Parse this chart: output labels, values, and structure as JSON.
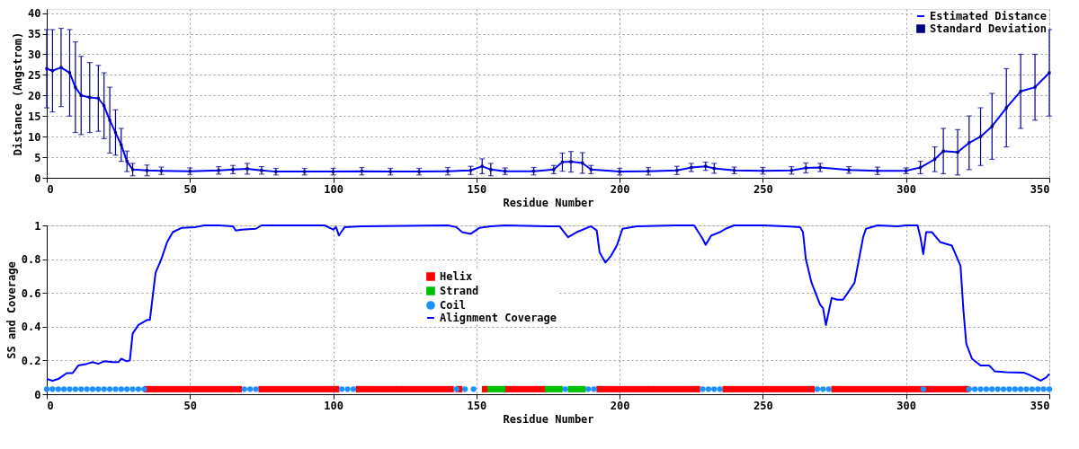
{
  "chart_data": [
    {
      "type": "line",
      "xlabel": "Residue Number",
      "ylabel": "Distance (Angstrom)",
      "xlim": [
        0,
        350
      ],
      "ylim": [
        0,
        41
      ],
      "xticks": [
        0,
        50,
        100,
        150,
        200,
        250,
        300,
        350
      ],
      "yticks": [
        0,
        5,
        10,
        15,
        20,
        25,
        30,
        35,
        40
      ],
      "grid": true,
      "legend": "top right",
      "x": [
        0,
        2,
        5,
        8,
        10,
        12,
        15,
        18,
        20,
        22,
        24,
        26,
        28,
        30,
        35,
        40,
        50,
        60,
        65,
        70,
        75,
        80,
        90,
        100,
        110,
        120,
        130,
        140,
        148,
        152,
        155,
        160,
        170,
        177,
        180,
        183,
        187,
        190,
        200,
        210,
        220,
        225,
        230,
        233,
        240,
        250,
        260,
        265,
        270,
        280,
        290,
        300,
        305,
        310,
        313,
        318,
        322,
        326,
        330,
        335,
        340,
        345,
        350
      ],
      "series": [
        {
          "name": "Estimated Distance",
          "color": "#0000ff",
          "values": [
            26.5,
            26,
            26.8,
            25.5,
            22,
            20,
            19.5,
            19.3,
            17.5,
            14,
            11,
            8,
            4,
            2,
            1.8,
            1.7,
            1.6,
            1.8,
            2.0,
            2.2,
            1.8,
            1.5,
            1.5,
            1.5,
            1.6,
            1.5,
            1.5,
            1.6,
            1.8,
            2.8,
            2.0,
            1.6,
            1.6,
            2.0,
            3.8,
            3.9,
            3.6,
            2.0,
            1.5,
            1.6,
            1.8,
            2.5,
            2.8,
            2.3,
            1.8,
            1.7,
            1.8,
            2.4,
            2.5,
            1.9,
            1.7,
            1.7,
            2.5,
            4.5,
            6.5,
            6.2,
            8.5,
            10,
            12.5,
            17,
            21,
            22,
            25.5
          ]
        },
        {
          "name": "Standard Deviation",
          "type": "scatter",
          "marker": "square",
          "color": "#00008b",
          "values": [
            26.5,
            26,
            26.8,
            25.5,
            22,
            20,
            19.5,
            19.3,
            17.5,
            14,
            11,
            8,
            4,
            2,
            1.8,
            1.7,
            1.6,
            1.8,
            2.0,
            2.2,
            1.8,
            1.5,
            1.5,
            1.5,
            1.6,
            1.5,
            1.5,
            1.6,
            1.8,
            2.8,
            2.0,
            1.6,
            1.6,
            2.0,
            3.8,
            3.9,
            3.6,
            2.0,
            1.5,
            1.6,
            1.8,
            2.5,
            2.8,
            2.3,
            1.8,
            1.7,
            1.8,
            2.4,
            2.5,
            1.9,
            1.7,
            1.7,
            2.5,
            4.5,
            6.5,
            6.2,
            8.5,
            10,
            12.5,
            17,
            21,
            22,
            25.5
          ],
          "errors": [
            9.5,
            10,
            9.5,
            10.5,
            11,
            9.5,
            8.5,
            8,
            8,
            8,
            5.5,
            4,
            2.5,
            1.5,
            1.3,
            0.9,
            0.8,
            0.9,
            1.0,
            1.3,
            0.9,
            0.8,
            0.8,
            0.8,
            0.9,
            0.8,
            0.8,
            0.9,
            1.0,
            1.8,
            1.5,
            0.8,
            0.9,
            1.0,
            2.2,
            2.5,
            2.5,
            1.0,
            0.8,
            0.9,
            1.0,
            1.0,
            1.0,
            1.2,
            0.8,
            0.8,
            0.9,
            1.2,
            1.0,
            0.8,
            0.9,
            0.7,
            1.5,
            3,
            5.5,
            5.5,
            6.5,
            7,
            8,
            9.5,
            9,
            8,
            10.5
          ]
        }
      ]
    },
    {
      "type": "scatter",
      "xlabel": "Residue Number",
      "ylabel": "SS and Coverage",
      "xlim": [
        0,
        350
      ],
      "ylim": [
        0,
        1
      ],
      "xticks": [
        0,
        50,
        100,
        150,
        200,
        250,
        300,
        350
      ],
      "yticks": [
        0,
        0.2,
        0.4,
        0.6,
        0.8,
        1
      ],
      "grid": true,
      "legend": "center",
      "series": [
        {
          "name": "Helix",
          "marker": "square",
          "color": "#ff0000",
          "x": [
            35,
            37,
            39,
            41,
            43,
            45,
            47,
            49,
            51,
            53,
            55,
            57,
            59,
            61,
            63,
            65,
            67,
            75,
            77,
            79,
            81,
            83,
            85,
            87,
            89,
            91,
            93,
            95,
            97,
            99,
            101,
            109,
            111,
            113,
            115,
            117,
            119,
            121,
            123,
            125,
            127,
            129,
            131,
            133,
            135,
            137,
            139,
            141,
            144,
            153,
            161,
            163,
            165,
            167,
            169,
            171,
            173,
            193,
            195,
            197,
            199,
            201,
            203,
            205,
            207,
            209,
            211,
            213,
            215,
            217,
            219,
            221,
            223,
            225,
            227,
            237,
            239,
            241,
            243,
            245,
            247,
            249,
            251,
            253,
            255,
            257,
            259,
            261,
            263,
            265,
            267,
            275,
            277,
            279,
            281,
            283,
            285,
            287,
            289,
            291,
            293,
            295,
            297,
            299,
            301,
            303,
            305,
            307,
            309,
            311,
            313,
            315,
            317,
            319,
            321
          ],
          "values": [
            0.03,
            0.03,
            0.03,
            0.03,
            0.03,
            0.03,
            0.03,
            0.03,
            0.03,
            0.03,
            0.03,
            0.03,
            0.03,
            0.03,
            0.03,
            0.03,
            0.03,
            0.03,
            0.03,
            0.03,
            0.03,
            0.03,
            0.03,
            0.03,
            0.03,
            0.03,
            0.03,
            0.03,
            0.03,
            0.03,
            0.03,
            0.03,
            0.03,
            0.03,
            0.03,
            0.03,
            0.03,
            0.03,
            0.03,
            0.03,
            0.03,
            0.03,
            0.03,
            0.03,
            0.03,
            0.03,
            0.03,
            0.03,
            0.03,
            0.03,
            0.03,
            0.03,
            0.03,
            0.03,
            0.03,
            0.03,
            0.03,
            0.03,
            0.03,
            0.03,
            0.03,
            0.03,
            0.03,
            0.03,
            0.03,
            0.03,
            0.03,
            0.03,
            0.03,
            0.03,
            0.03,
            0.03,
            0.03,
            0.03,
            0.03,
            0.03,
            0.03,
            0.03,
            0.03,
            0.03,
            0.03,
            0.03,
            0.03,
            0.03,
            0.03,
            0.03,
            0.03,
            0.03,
            0.03,
            0.03,
            0.03,
            0.03,
            0.03,
            0.03,
            0.03,
            0.03,
            0.03,
            0.03,
            0.03,
            0.03,
            0.03,
            0.03,
            0.03,
            0.03,
            0.03,
            0.03,
            0.03,
            0.03,
            0.03,
            0.03,
            0.03,
            0.03,
            0.03,
            0.03,
            0.03
          ]
        },
        {
          "name": "Strand",
          "marker": "square",
          "color": "#00c000",
          "x": [
            155,
            157,
            159,
            175,
            177,
            179,
            183,
            185,
            187
          ],
          "values": [
            0.03,
            0.03,
            0.03,
            0.03,
            0.03,
            0.03,
            0.03,
            0.03,
            0.03
          ]
        },
        {
          "name": "Coil",
          "marker": "circle",
          "color": "#1e90ff",
          "x": [
            0,
            2,
            4,
            6,
            8,
            10,
            12,
            14,
            16,
            18,
            20,
            22,
            24,
            26,
            28,
            30,
            32,
            34,
            69,
            71,
            73,
            103,
            105,
            107,
            143,
            146,
            149,
            181,
            189,
            191,
            229,
            231,
            233,
            235,
            269,
            271,
            273,
            306,
            322,
            324,
            326,
            328,
            330,
            332,
            334,
            336,
            338,
            340,
            342,
            344,
            346,
            348,
            350
          ],
          "values": [
            0.03,
            0.03,
            0.03,
            0.03,
            0.03,
            0.03,
            0.03,
            0.03,
            0.03,
            0.03,
            0.03,
            0.03,
            0.03,
            0.03,
            0.03,
            0.03,
            0.03,
            0.03,
            0.03,
            0.03,
            0.03,
            0.03,
            0.03,
            0.03,
            0.03,
            0.03,
            0.03,
            0.03,
            0.03,
            0.03,
            0.03,
            0.03,
            0.03,
            0.03,
            0.03,
            0.03,
            0.03,
            0.03,
            0.03,
            0.03,
            0.03,
            0.03,
            0.03,
            0.03,
            0.03,
            0.03,
            0.03,
            0.03,
            0.03,
            0.03,
            0.03,
            0.03,
            0.03
          ]
        },
        {
          "name": "Alignment Coverage",
          "type": "line",
          "color": "#0000ff",
          "x": [
            0,
            2,
            4,
            7,
            9,
            11,
            14,
            16,
            18,
            20,
            23,
            25,
            26,
            28,
            29,
            30,
            32,
            35,
            36,
            37,
            38,
            40,
            42,
            44,
            47,
            52,
            55,
            60,
            65,
            66,
            68,
            73,
            75,
            97,
            100,
            101,
            102,
            104,
            110,
            140,
            143,
            145,
            148,
            151,
            155,
            160,
            175,
            179,
            182,
            185,
            190,
            192,
            193,
            195,
            197,
            199,
            201,
            206,
            220,
            226,
            229,
            230,
            232,
            235,
            237,
            240,
            250,
            258,
            263,
            264,
            265,
            267,
            270,
            271,
            272,
            274,
            276,
            278,
            282,
            285,
            286,
            290,
            297,
            300,
            304,
            305,
            306,
            307,
            309,
            312,
            316,
            319,
            320,
            321,
            323,
            326,
            329,
            331,
            335,
            341,
            343,
            347,
            349,
            350
          ],
          "values": [
            0.09,
            0.08,
            0.09,
            0.125,
            0.125,
            0.17,
            0.18,
            0.19,
            0.18,
            0.195,
            0.19,
            0.19,
            0.21,
            0.195,
            0.2,
            0.36,
            0.41,
            0.44,
            0.44,
            0.58,
            0.72,
            0.8,
            0.9,
            0.96,
            0.985,
            0.99,
            1.0,
            1.0,
            0.995,
            0.97,
            0.975,
            0.98,
            1.0,
            1.0,
            0.975,
            0.99,
            0.94,
            0.99,
            0.995,
            1.0,
            0.99,
            0.96,
            0.95,
            0.985,
            0.995,
            1.0,
            0.995,
            0.995,
            0.93,
            0.96,
            0.995,
            0.97,
            0.84,
            0.78,
            0.82,
            0.88,
            0.98,
            0.995,
            1.0,
            1.0,
            0.92,
            0.885,
            0.94,
            0.96,
            0.98,
            1.0,
            1.0,
            0.995,
            0.99,
            0.96,
            0.8,
            0.66,
            0.53,
            0.51,
            0.41,
            0.57,
            0.56,
            0.56,
            0.66,
            0.93,
            0.98,
            1.0,
            0.995,
            1.0,
            1.0,
            0.93,
            0.83,
            0.96,
            0.96,
            0.9,
            0.88,
            0.76,
            0.5,
            0.3,
            0.21,
            0.17,
            0.17,
            0.135,
            0.13,
            0.128,
            0.115,
            0.08,
            0.1,
            0.12
          ]
        }
      ]
    }
  ]
}
